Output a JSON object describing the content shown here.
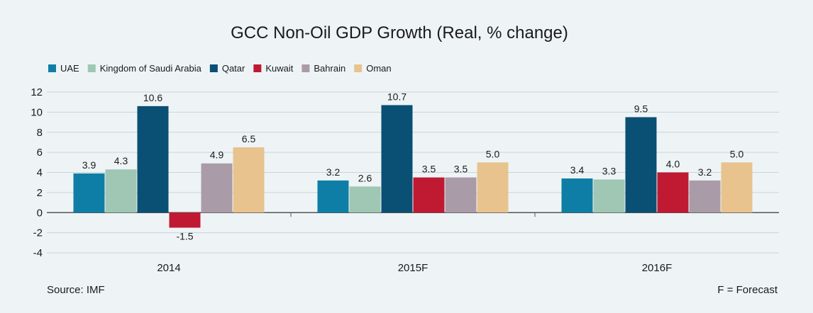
{
  "chart_data": {
    "type": "bar",
    "title": "GCC Non-Oil GDP Growth (Real, % change)",
    "categories": [
      "2014",
      "2015F",
      "2016F"
    ],
    "series": [
      {
        "name": "UAE",
        "color": "#0e7ea6",
        "values": [
          3.9,
          3.2,
          3.4
        ],
        "labels": [
          "3.9",
          "3.2",
          "3.4"
        ]
      },
      {
        "name": "Kingdom of Saudi Arabia",
        "color": "#9fc7b3",
        "values": [
          4.3,
          2.6,
          3.3
        ],
        "labels": [
          "4.3",
          "2.6",
          "3.3"
        ]
      },
      {
        "name": "Qatar",
        "color": "#0a4f74",
        "values": [
          10.6,
          10.7,
          9.5
        ],
        "labels": [
          "10.6",
          "10.7",
          "9.5"
        ]
      },
      {
        "name": "Kuwait",
        "color": "#c01932",
        "values": [
          -1.5,
          3.5,
          4.0
        ],
        "labels": [
          "-1.5",
          "3.5",
          "4.0"
        ]
      },
      {
        "name": "Bahrain",
        "color": "#a99ca8",
        "values": [
          4.9,
          3.5,
          3.2
        ],
        "labels": [
          "4.9",
          "3.5",
          "3.2"
        ]
      },
      {
        "name": "Oman",
        "color": "#e8c38e",
        "values": [
          6.5,
          5.0,
          5.0
        ],
        "labels": [
          "6.5",
          "5.0",
          "5.0"
        ]
      }
    ],
    "yticks": [
      "12",
      "10",
      "8",
      "6",
      "4",
      "2",
      "0",
      "-2",
      "-4"
    ],
    "ylim": [
      -4,
      12
    ],
    "grid": true,
    "legend_position": "top-left",
    "source": "Source: IMF",
    "footnote": "F = Forecast"
  }
}
